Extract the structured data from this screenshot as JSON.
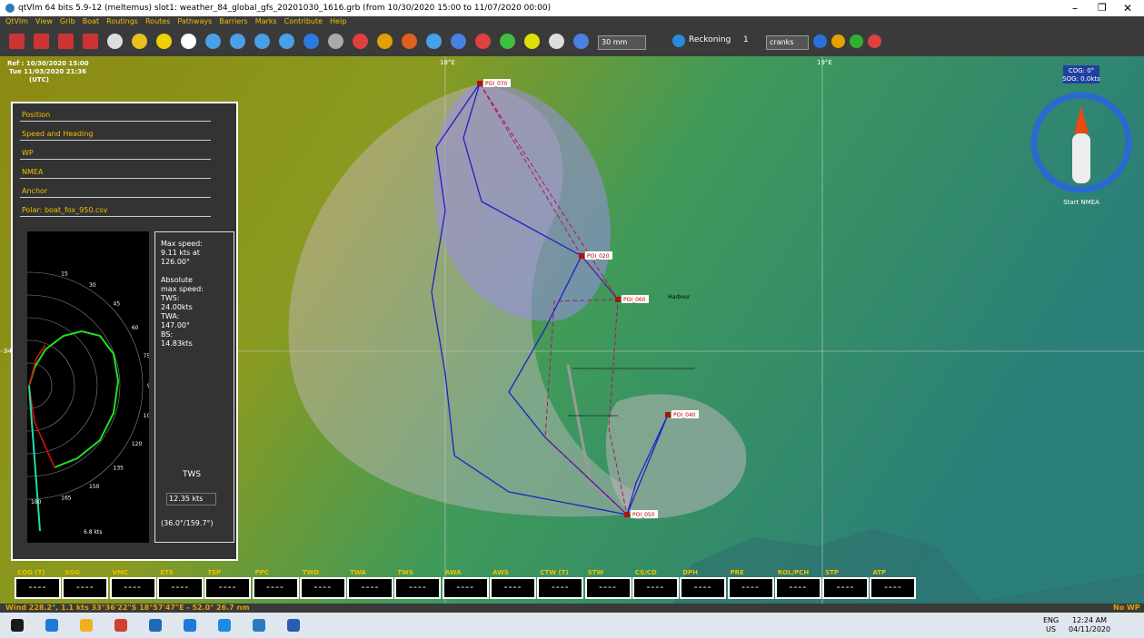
{
  "window": {
    "title": "qtVlm 64 bits 5.9-12 (meltemus) slot1: weather_84_global_gfs_20201030_1616.grb (from 10/30/2020 15:00 to 11/07/2020 00:00)"
  },
  "menu": [
    "QtVlm",
    "View",
    "Grib",
    "Boat",
    "Routings",
    "Routes",
    "Pathways",
    "Barriers",
    "Marks",
    "Contribute",
    "Help"
  ],
  "toolbar": {
    "time_step": "30 mm",
    "reckoning": "Reckoning",
    "cranks_count": "1",
    "cranks": "cranks"
  },
  "map": {
    "ref": "Ref : 10/30/2020 15:00",
    "date": "Tue 11/03/2020 21:36",
    "utc": "(UTC)",
    "lon_labels": [
      "18°E",
      "19°E"
    ],
    "lat_label": "34",
    "pois": [
      "POI_070",
      "POI_020",
      "POI_060",
      "POI_050",
      "POI_040"
    ],
    "harbour": "Harbour"
  },
  "compass": {
    "cog": "COG: 0°",
    "sog": "SOG: 0.0kts",
    "start": "Start NMEA"
  },
  "panel": {
    "sections": [
      "Position",
      "Speed and Heading",
      "WP",
      "NMEA",
      "Anchor",
      "Polar: boat_fox_950.csv"
    ],
    "polar_angles": [
      15,
      30,
      45,
      60,
      75,
      90,
      105,
      120,
      135,
      150,
      165,
      180
    ],
    "polar_speed": "6.8 kts",
    "info": [
      "Max speed:",
      "9.11 kts at",
      "126.00°",
      "",
      "Absolute",
      "max speed:",
      "TWS:",
      "24.00kts",
      "TWA:",
      "147.00°",
      "BS:",
      "14.83kts"
    ],
    "tws_label": "TWS",
    "tws_value": "12.35 kts",
    "tws_angles": "(36.0°/159.7°)"
  },
  "instruments": {
    "labels": [
      "COG (T)",
      "SOG",
      "VMC",
      "XTE",
      "TSP",
      "PPC",
      "TWD",
      "TWA",
      "TWS",
      "AWA",
      "AWS",
      "CTW (T)",
      "STW",
      "CS/CD",
      "DPH",
      "PRE",
      "ROL/PCH",
      "STP",
      "ATP"
    ],
    "empty": "----"
  },
  "status": {
    "wind": "Wind 228.2°, 1.1 kts 33°36'22\"S 18°57'47\"E - 52.0° 26.7 nm",
    "wp": "No WP"
  },
  "taskbar": {
    "lang": "ENG",
    "region": "US",
    "time": "12:24 AM",
    "date": "04/11/2020"
  }
}
